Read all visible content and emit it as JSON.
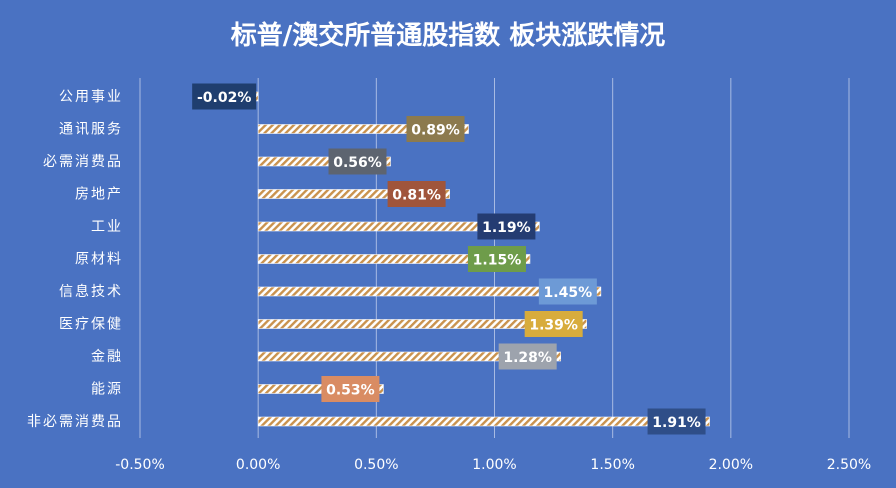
{
  "chart_data": {
    "type": "bar",
    "orientation": "horizontal",
    "title": "标普/澳交所普通股指数 板块涨跌情况",
    "xlabel": "",
    "ylabel": "",
    "xlim": [
      -0.5,
      2.5
    ],
    "x_ticks": [
      "-0.50%",
      "0.00%",
      "0.50%",
      "1.00%",
      "1.50%",
      "2.00%",
      "2.50%"
    ],
    "x_tick_values": [
      -0.5,
      0,
      0.5,
      1.0,
      1.5,
      2.0,
      2.5
    ],
    "grid": true,
    "legend": "none",
    "categories": [
      "公用事业",
      "通讯服务",
      "必需消费品",
      "房地产",
      "工业",
      "原材料",
      "信息技术",
      "医疗保健",
      "金融",
      "能源",
      "非必需消费品"
    ],
    "values": [
      -0.02,
      0.89,
      0.56,
      0.81,
      1.19,
      1.15,
      1.45,
      1.39,
      1.28,
      0.53,
      1.91
    ],
    "data_labels": [
      "-0.02%",
      "0.89%",
      "0.56%",
      "0.81%",
      "1.19%",
      "1.15%",
      "1.45%",
      "1.39%",
      "1.28%",
      "0.53%",
      "1.91%"
    ],
    "colors": [
      "#1f3e6f",
      "#8c7a4e",
      "#5d6470",
      "#a0553b",
      "#243c72",
      "#6e9c4a",
      "#6d9ad6",
      "#d8ac3c",
      "#9da3ad",
      "#d98c63",
      "#2f4e88"
    ]
  }
}
